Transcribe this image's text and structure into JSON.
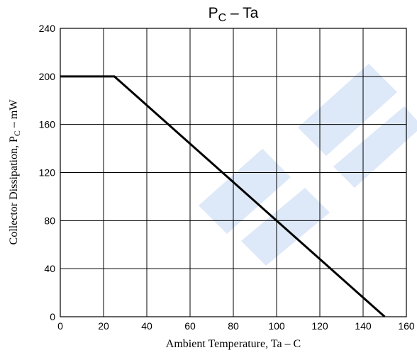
{
  "chart_data": {
    "type": "line",
    "title": {
      "main": "P",
      "sub": "C",
      "rest": " – Ta"
    },
    "xlabel": "Ambient Temperature,  Ta  –    C",
    "ylabel": {
      "main": "Collector Dissipation,  P",
      "sub": "C",
      "rest": "  –  mW"
    },
    "xlim": [
      0,
      160
    ],
    "ylim": [
      0,
      240
    ],
    "xticks": [
      "0",
      "20",
      "40",
      "60",
      "80",
      "100",
      "120",
      "140",
      "160"
    ],
    "yticks": [
      "0",
      "40",
      "80",
      "120",
      "160",
      "200",
      "240"
    ],
    "grid": true,
    "series": [
      {
        "x": [
          0,
          25,
          150
        ],
        "y": [
          200,
          200,
          0
        ]
      }
    ],
    "colors": {
      "line": "#000000",
      "grid": "#000000",
      "watermark": "#d9e6f7"
    }
  }
}
